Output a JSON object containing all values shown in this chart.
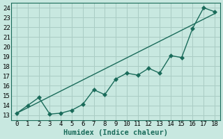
{
  "xlabel": "Humidex (Indice chaleur)",
  "bg_color": "#c8e8e0",
  "grid_color": "#aaccc4",
  "line_color": "#1a6b5a",
  "xlim": [
    -0.5,
    18.5
  ],
  "ylim": [
    12.5,
    24.5
  ],
  "xticks": [
    0,
    1,
    2,
    3,
    4,
    5,
    6,
    7,
    8,
    9,
    10,
    11,
    12,
    13,
    14,
    15,
    16,
    17,
    18
  ],
  "yticks": [
    13,
    14,
    15,
    16,
    17,
    18,
    19,
    20,
    21,
    22,
    23,
    24
  ],
  "line1_x": [
    0,
    1,
    2,
    3,
    4,
    5,
    6,
    7,
    8,
    9,
    10,
    11,
    12,
    13,
    14,
    15,
    16,
    17,
    18
  ],
  "line1_y": [
    13.2,
    14.0,
    14.8,
    13.1,
    13.2,
    13.5,
    14.1,
    15.6,
    15.1,
    16.7,
    17.3,
    17.1,
    17.8,
    17.3,
    19.1,
    18.9,
    21.9,
    24.0,
    23.6
  ],
  "line2_x": [
    0,
    18
  ],
  "line2_y": [
    13.2,
    23.4
  ],
  "markersize": 3.0,
  "tick_fontsize": 6.5,
  "xlabel_fontsize": 7.5
}
